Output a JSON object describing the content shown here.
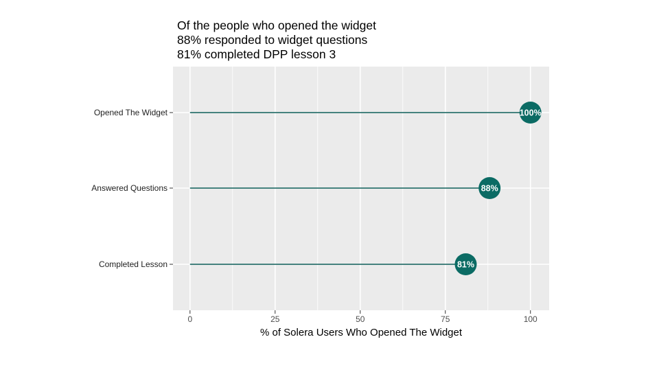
{
  "chart_data": {
    "type": "lollipop",
    "title_lines": [
      "Of the people who opened the widget",
      "88% responded to widget questions",
      "81% completed DPP lesson 3"
    ],
    "categories": [
      "Opened The Widget",
      "Answered Questions",
      "Completed Lesson"
    ],
    "values": [
      100,
      88,
      81
    ],
    "data_labels": [
      "100%",
      "88%",
      "81%"
    ],
    "xlabel": "% of Solera Users Who Opened The Widget",
    "ylabel": "",
    "xlim": [
      -5,
      105.5
    ],
    "xticks": [
      0,
      25,
      50,
      75,
      100
    ],
    "xtick_labels": [
      "0",
      "25",
      "50",
      "75",
      "100"
    ],
    "grid": true,
    "colors": {
      "point": "#0b6b64",
      "segment": "#0b5c57",
      "panel": "#ebebeb",
      "grid": "#ffffff"
    }
  }
}
